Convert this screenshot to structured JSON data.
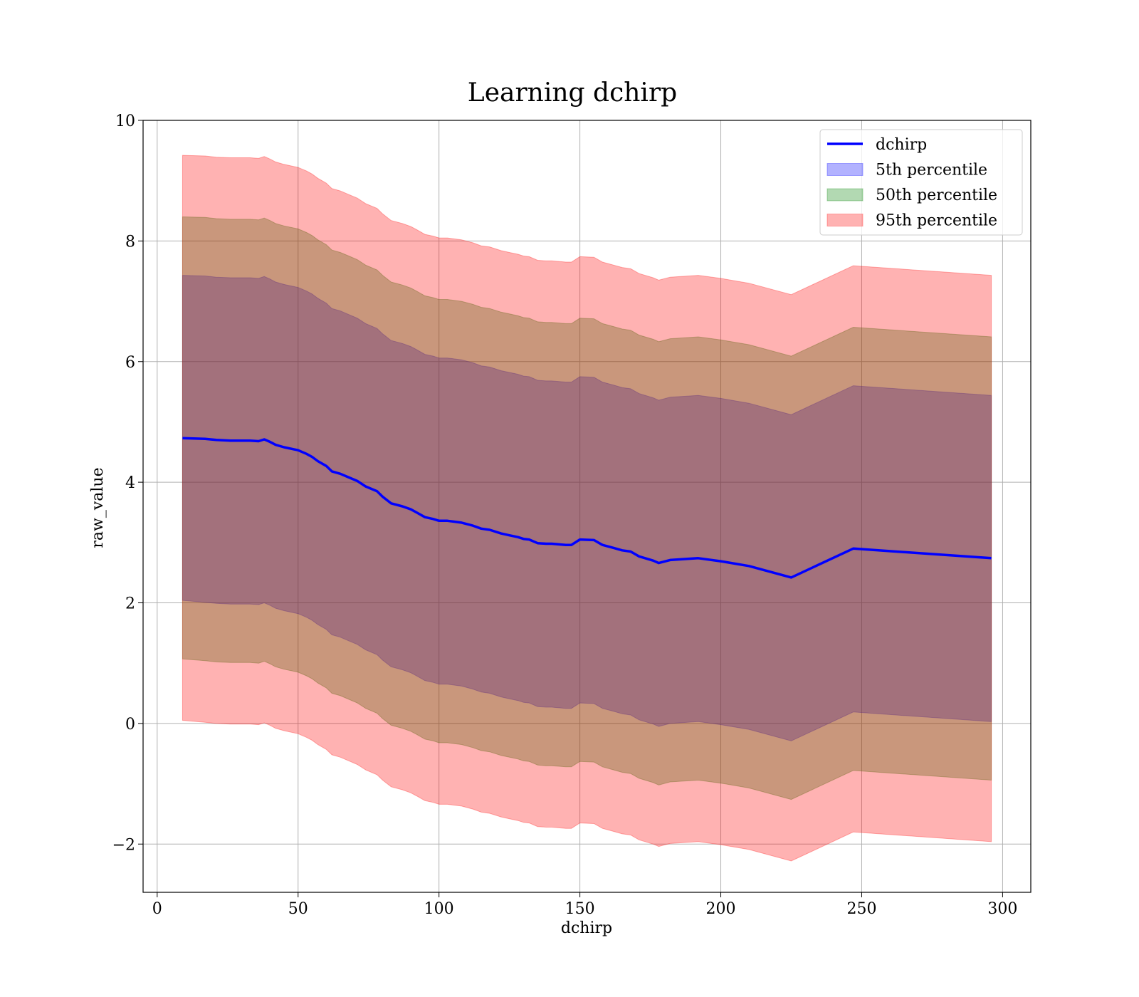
{
  "chart_data": {
    "type": "line",
    "title": "Learning dchirp",
    "xlabel": "dchirp",
    "ylabel": "raw_value",
    "xlim": [
      -5,
      310
    ],
    "ylim": [
      -2.8,
      10
    ],
    "xticks": [
      0,
      50,
      100,
      150,
      200,
      250,
      300
    ],
    "yticks": [
      -2,
      0,
      2,
      4,
      6,
      8,
      10
    ],
    "xtick_labels": [
      "0",
      "50",
      "100",
      "150",
      "200",
      "250",
      "300"
    ],
    "ytick_labels": [
      "−2",
      "0",
      "2",
      "4",
      "6",
      "8",
      "10"
    ],
    "grid": true,
    "legend_position": "top-right",
    "x": [
      9,
      17,
      21,
      26,
      33,
      36,
      38,
      40,
      42,
      45,
      50,
      53,
      55,
      57,
      60,
      62,
      65,
      68,
      71,
      74,
      78,
      80,
      83,
      87,
      90,
      92,
      95,
      98,
      100,
      103,
      108,
      112,
      115,
      118,
      122,
      125,
      128,
      130,
      132,
      135,
      138,
      140,
      145,
      147,
      150,
      155,
      158,
      162,
      165,
      168,
      171,
      176,
      178,
      182,
      192,
      200,
      210,
      225,
      247,
      296
    ],
    "series": [
      {
        "name": "dchirp",
        "kind": "line",
        "color": "#0000ff",
        "values": [
          4.73,
          4.72,
          4.7,
          4.69,
          4.69,
          4.68,
          4.71,
          4.67,
          4.62,
          4.58,
          4.53,
          4.47,
          4.42,
          4.35,
          4.27,
          4.18,
          4.14,
          4.08,
          4.02,
          3.93,
          3.85,
          3.76,
          3.65,
          3.6,
          3.55,
          3.5,
          3.42,
          3.39,
          3.36,
          3.36,
          3.33,
          3.28,
          3.23,
          3.21,
          3.15,
          3.12,
          3.09,
          3.06,
          3.05,
          2.99,
          2.98,
          2.98,
          2.96,
          2.96,
          3.05,
          3.04,
          2.96,
          2.91,
          2.87,
          2.85,
          2.77,
          2.7,
          2.66,
          2.71,
          2.74,
          2.69,
          2.61,
          2.42,
          2.9,
          2.74
        ]
      },
      {
        "name": "5th percentile",
        "kind": "band",
        "color": "#0000ff",
        "opacity": 0.3,
        "lower": [
          2.04,
          2.01,
          1.99,
          1.98,
          1.98,
          1.97,
          2.0,
          1.96,
          1.91,
          1.87,
          1.82,
          1.76,
          1.71,
          1.64,
          1.56,
          1.47,
          1.43,
          1.37,
          1.31,
          1.22,
          1.14,
          1.05,
          0.94,
          0.89,
          0.84,
          0.79,
          0.71,
          0.68,
          0.65,
          0.65,
          0.62,
          0.57,
          0.52,
          0.5,
          0.44,
          0.41,
          0.38,
          0.35,
          0.34,
          0.28,
          0.27,
          0.27,
          0.25,
          0.25,
          0.34,
          0.33,
          0.25,
          0.2,
          0.16,
          0.14,
          0.06,
          -0.01,
          -0.05,
          0.0,
          0.03,
          -0.02,
          -0.1,
          -0.29,
          0.19,
          0.03
        ],
        "upper": [
          7.43,
          7.42,
          7.4,
          7.39,
          7.39,
          7.38,
          7.41,
          7.37,
          7.32,
          7.28,
          7.23,
          7.17,
          7.12,
          7.05,
          6.97,
          6.88,
          6.84,
          6.78,
          6.72,
          6.63,
          6.55,
          6.46,
          6.35,
          6.3,
          6.25,
          6.2,
          6.12,
          6.09,
          6.06,
          6.06,
          6.03,
          5.98,
          5.93,
          5.91,
          5.85,
          5.82,
          5.79,
          5.76,
          5.75,
          5.69,
          5.68,
          5.68,
          5.66,
          5.66,
          5.75,
          5.74,
          5.66,
          5.61,
          5.57,
          5.55,
          5.47,
          5.4,
          5.36,
          5.41,
          5.44,
          5.39,
          5.31,
          5.12,
          5.6,
          5.44
        ]
      },
      {
        "name": "50th percentile",
        "kind": "band",
        "color": "#008000",
        "opacity": 0.3,
        "lower": [
          1.07,
          1.04,
          1.02,
          1.01,
          1.01,
          1.0,
          1.03,
          0.99,
          0.94,
          0.9,
          0.85,
          0.79,
          0.74,
          0.67,
          0.59,
          0.5,
          0.46,
          0.4,
          0.34,
          0.25,
          0.17,
          0.08,
          -0.03,
          -0.08,
          -0.13,
          -0.18,
          -0.26,
          -0.29,
          -0.32,
          -0.32,
          -0.35,
          -0.4,
          -0.45,
          -0.47,
          -0.53,
          -0.56,
          -0.59,
          -0.62,
          -0.63,
          -0.69,
          -0.7,
          -0.7,
          -0.72,
          -0.72,
          -0.63,
          -0.64,
          -0.72,
          -0.77,
          -0.81,
          -0.83,
          -0.91,
          -0.98,
          -1.02,
          -0.97,
          -0.94,
          -0.99,
          -1.07,
          -1.26,
          -0.78,
          -0.94
        ],
        "upper": [
          8.4,
          8.39,
          8.37,
          8.36,
          8.36,
          8.35,
          8.38,
          8.34,
          8.29,
          8.25,
          8.2,
          8.14,
          8.09,
          8.02,
          7.94,
          7.85,
          7.81,
          7.75,
          7.69,
          7.6,
          7.52,
          7.43,
          7.32,
          7.27,
          7.22,
          7.17,
          7.09,
          7.06,
          7.03,
          7.03,
          7.0,
          6.95,
          6.9,
          6.88,
          6.82,
          6.79,
          6.76,
          6.73,
          6.72,
          6.66,
          6.65,
          6.65,
          6.63,
          6.63,
          6.72,
          6.71,
          6.63,
          6.58,
          6.54,
          6.52,
          6.44,
          6.37,
          6.33,
          6.38,
          6.41,
          6.36,
          6.28,
          6.09,
          6.57,
          6.41
        ]
      },
      {
        "name": "95th percentile",
        "kind": "band",
        "color": "#ff0000",
        "opacity": 0.3,
        "lower": [
          0.05,
          0.02,
          0.0,
          -0.01,
          -0.01,
          -0.02,
          0.01,
          -0.03,
          -0.08,
          -0.12,
          -0.17,
          -0.23,
          -0.28,
          -0.35,
          -0.43,
          -0.52,
          -0.56,
          -0.62,
          -0.68,
          -0.77,
          -0.85,
          -0.94,
          -1.05,
          -1.1,
          -1.15,
          -1.2,
          -1.28,
          -1.31,
          -1.34,
          -1.34,
          -1.37,
          -1.42,
          -1.47,
          -1.49,
          -1.55,
          -1.58,
          -1.61,
          -1.64,
          -1.65,
          -1.71,
          -1.72,
          -1.72,
          -1.74,
          -1.74,
          -1.65,
          -1.66,
          -1.74,
          -1.79,
          -1.83,
          -1.85,
          -1.93,
          -2.0,
          -2.04,
          -1.99,
          -1.96,
          -2.01,
          -2.09,
          -2.28,
          -1.8,
          -1.96
        ],
        "upper": [
          9.42,
          9.41,
          9.39,
          9.38,
          9.38,
          9.37,
          9.4,
          9.36,
          9.31,
          9.27,
          9.22,
          9.16,
          9.11,
          9.04,
          8.96,
          8.87,
          8.83,
          8.77,
          8.71,
          8.62,
          8.54,
          8.45,
          8.34,
          8.29,
          8.24,
          8.19,
          8.11,
          8.08,
          8.05,
          8.05,
          8.02,
          7.97,
          7.92,
          7.9,
          7.84,
          7.81,
          7.78,
          7.75,
          7.74,
          7.68,
          7.67,
          7.67,
          7.65,
          7.65,
          7.74,
          7.73,
          7.65,
          7.6,
          7.56,
          7.54,
          7.46,
          7.39,
          7.35,
          7.4,
          7.43,
          7.38,
          7.3,
          7.11,
          7.59,
          7.43
        ]
      }
    ]
  }
}
